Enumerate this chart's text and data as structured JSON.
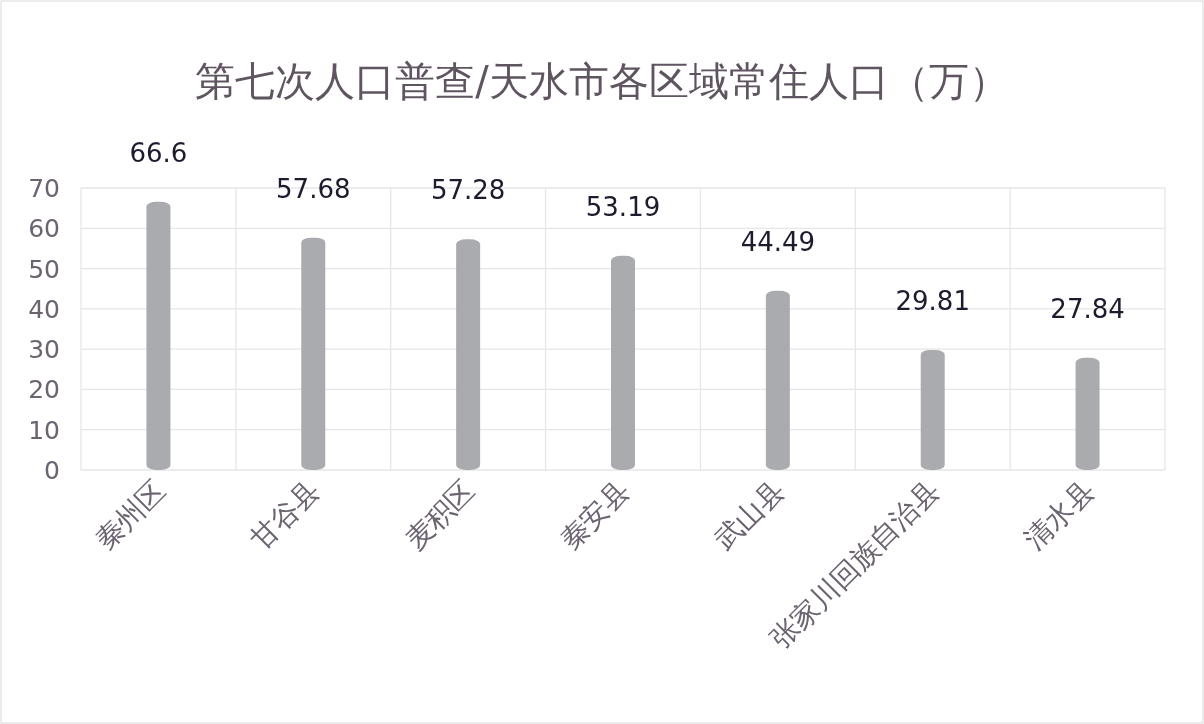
{
  "chart_data": {
    "type": "bar",
    "title": "第七次人口普查/天水市各区域常住人口（万）",
    "categories": [
      "秦州区",
      "甘谷县",
      "麦积区",
      "秦安县",
      "武山县",
      "张家川回族自治县",
      "清水县"
    ],
    "values": [
      66.6,
      57.68,
      57.28,
      53.19,
      44.49,
      29.81,
      27.84
    ],
    "color": "#a9abae",
    "ylim": [
      0,
      70
    ],
    "yticks": [
      0,
      10,
      20,
      30,
      40,
      50,
      60,
      70
    ],
    "grid": true,
    "data_labels": true
  }
}
